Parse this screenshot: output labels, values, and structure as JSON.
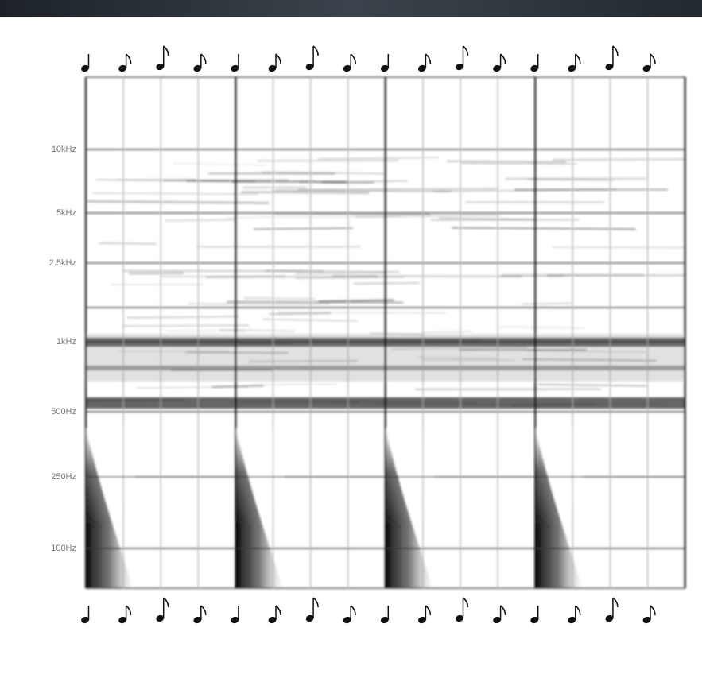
{
  "axis_labels": [
    "10kHz",
    "5kHz",
    "2.5kHz",
    "1kHz",
    "500Hz",
    "250Hz",
    "100Hz"
  ]
}
